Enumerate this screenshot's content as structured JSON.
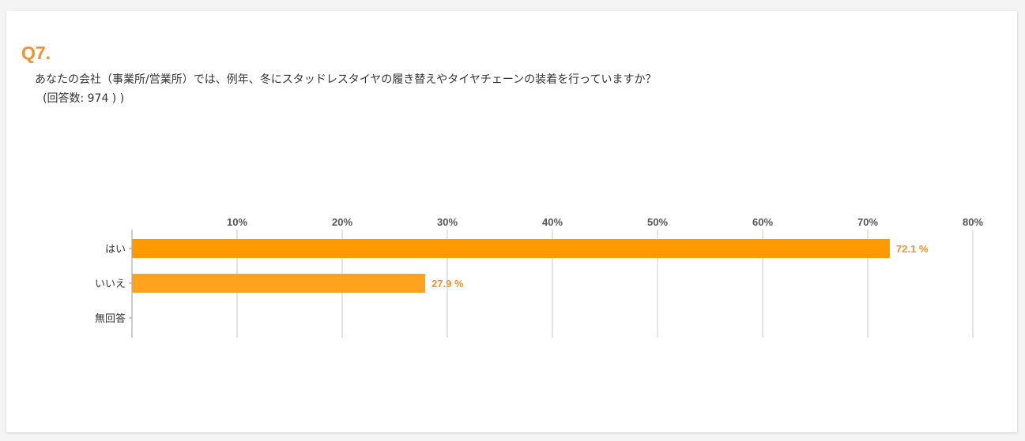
{
  "question": {
    "number": "Q7.",
    "text": "あなたの会社（事業所/営業所）では、例年、冬にスタッドレスタイヤの履き替えやタイヤチェーンの装着を行っていますか？",
    "count_label": "(回答数: 974 ) )"
  },
  "colors": {
    "accent": "#f0922e",
    "bar_primary": "#ff9900",
    "bar_secondary": "#ffa31f",
    "value_label": "#f0922e",
    "grid": "#c8c8c8",
    "tick_text": "#555555"
  },
  "chart_data": {
    "type": "bar",
    "orientation": "horizontal",
    "categories": [
      "はい",
      "いいえ",
      "無回答"
    ],
    "values": [
      72.1,
      27.9,
      null
    ],
    "value_labels": [
      "72.1 %",
      "27.9 %",
      ""
    ],
    "xlim": [
      0,
      80
    ],
    "xticks": [
      10,
      20,
      30,
      40,
      50,
      60,
      70,
      80
    ],
    "xtick_labels": [
      "10%",
      "20%",
      "30%",
      "40%",
      "50%",
      "60%",
      "70%",
      "80%"
    ],
    "xaxis_position": "top",
    "grid": true,
    "legend": "none"
  }
}
